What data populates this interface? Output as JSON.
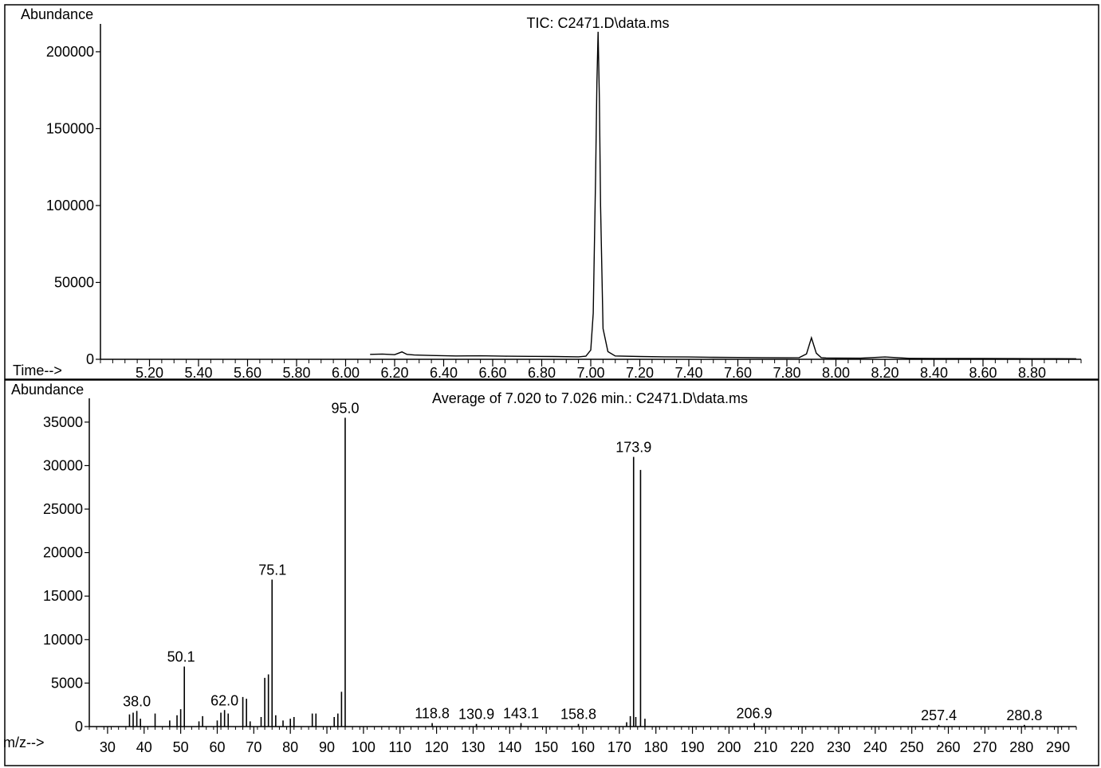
{
  "chart_data": [
    {
      "type": "line",
      "title": "TIC: C2471.D\\data.ms",
      "ylabel": "Abundance",
      "xlabel": "Time-->",
      "xlim": [
        5.0,
        9.0
      ],
      "ylim": [
        0,
        215000
      ],
      "y_ticks": [
        0,
        50000,
        100000,
        150000,
        200000
      ],
      "x_ticks": [
        5.2,
        5.4,
        5.6,
        5.8,
        6.0,
        6.2,
        6.4,
        6.6,
        6.8,
        7.0,
        7.2,
        7.4,
        7.6,
        7.8,
        8.0,
        8.2,
        8.4,
        8.6,
        8.8
      ],
      "x_tick_labels": [
        "5.20",
        "5.40",
        "5.60",
        "5.80",
        "6.00",
        "6.20",
        "6.40",
        "6.60",
        "6.80",
        "7.00",
        "7.20",
        "7.40",
        "7.60",
        "7.80",
        "8.00",
        "8.20",
        "8.40",
        "8.60",
        "8.80"
      ],
      "series": [
        {
          "x": [
            6.1,
            6.15,
            6.2,
            6.23,
            6.25,
            6.28,
            6.35,
            6.45,
            6.55,
            6.65,
            6.75,
            6.85,
            6.95,
            6.98,
            7.0,
            7.01,
            7.02,
            7.025,
            7.03,
            7.035,
            7.04,
            7.05,
            7.07,
            7.1,
            7.2,
            7.3,
            7.4,
            7.5,
            7.6,
            7.7,
            7.8,
            7.85,
            7.88,
            7.9,
            7.92,
            7.94,
            7.96,
            8.0,
            8.1,
            8.2,
            8.3,
            8.4,
            8.5,
            8.6,
            8.7,
            8.8,
            8.9,
            8.98
          ],
          "y": [
            3200,
            3400,
            3000,
            4800,
            3200,
            2800,
            2500,
            2200,
            2300,
            2000,
            1900,
            1800,
            1600,
            2000,
            6000,
            30000,
            120000,
            180000,
            213000,
            170000,
            100000,
            20000,
            5000,
            2200,
            1800,
            1600,
            1500,
            1300,
            1200,
            1100,
            1000,
            1100,
            3500,
            14000,
            4000,
            1100,
            900,
            800,
            700,
            1500,
            600,
            550,
            500,
            500,
            450,
            400,
            400,
            350
          ]
        }
      ]
    },
    {
      "type": "bar",
      "title": "Average of 7.020 to 7.026 min.: C2471.D\\data.ms",
      "ylabel": "Abundance",
      "xlabel": "m/z-->",
      "xlim": [
        25,
        295
      ],
      "ylim": [
        0,
        37000
      ],
      "y_ticks": [
        0,
        5000,
        10000,
        15000,
        20000,
        25000,
        30000,
        35000
      ],
      "x_ticks": [
        30,
        40,
        50,
        60,
        70,
        80,
        90,
        100,
        110,
        120,
        130,
        140,
        150,
        160,
        170,
        180,
        190,
        200,
        210,
        220,
        230,
        240,
        250,
        260,
        270,
        280,
        290
      ],
      "mz": [
        36,
        37,
        38,
        39,
        43,
        47,
        49,
        50,
        51,
        55,
        56,
        60,
        61,
        62,
        63,
        67,
        68,
        69,
        72,
        73,
        74,
        75,
        76,
        78,
        80,
        81,
        86,
        87,
        92,
        93,
        94,
        95,
        118.8,
        130.9,
        143.1,
        158.8,
        172,
        173,
        173.9,
        174.5,
        175.8,
        177,
        206.9,
        257.4,
        280.8
      ],
      "abundance": [
        1400,
        1600,
        1800,
        900,
        1500,
        700,
        1300,
        2000,
        6900,
        600,
        1200,
        700,
        1600,
        1900,
        1500,
        3400,
        3200,
        600,
        1100,
        5600,
        6000,
        16900,
        1300,
        700,
        900,
        1100,
        1500,
        1500,
        1100,
        1500,
        4000,
        35500,
        400,
        300,
        400,
        300,
        500,
        1200,
        31000,
        1100,
        29500,
        900,
        400,
        200,
        200
      ],
      "peak_labels": [
        {
          "x": 38.0,
          "y": 1800,
          "text": "38.0"
        },
        {
          "x": 50.1,
          "y": 6900,
          "text": "50.1"
        },
        {
          "x": 62.0,
          "y": 1900,
          "text": "62.0"
        },
        {
          "x": 75.1,
          "y": 16900,
          "text": "75.1"
        },
        {
          "x": 95.0,
          "y": 35500,
          "text": "95.0"
        },
        {
          "x": 118.8,
          "y": 400,
          "text": "118.8"
        },
        {
          "x": 130.9,
          "y": 300,
          "text": "130.9"
        },
        {
          "x": 143.1,
          "y": 400,
          "text": "143.1"
        },
        {
          "x": 158.8,
          "y": 300,
          "text": "158.8"
        },
        {
          "x": 173.9,
          "y": 31000,
          "text": "173.9"
        },
        {
          "x": 206.9,
          "y": 400,
          "text": "206.9"
        },
        {
          "x": 257.4,
          "y": 200,
          "text": "257.4"
        },
        {
          "x": 280.8,
          "y": 200,
          "text": "280.8"
        }
      ]
    }
  ]
}
